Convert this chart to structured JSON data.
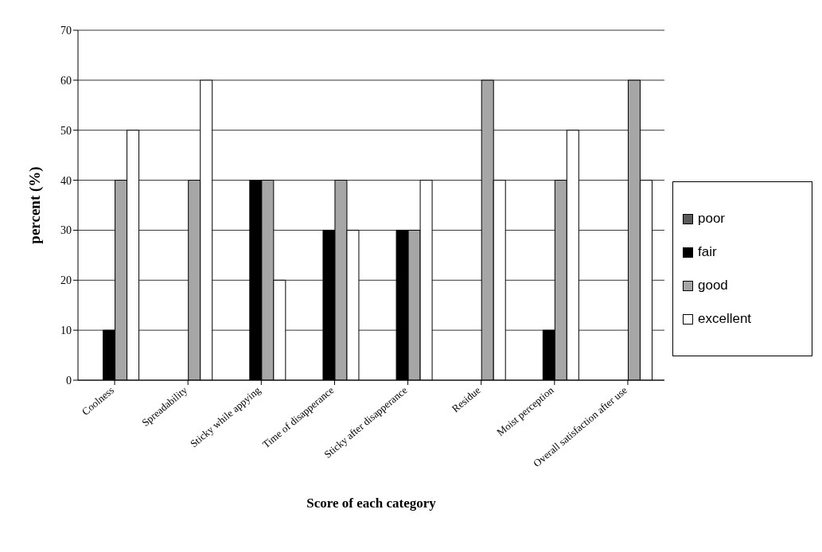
{
  "chart_data": {
    "type": "bar",
    "xlabel": "Score of each category",
    "ylabel": "percent (%)",
    "categories": [
      "Coolness",
      "Spreadability",
      "Sticky while appying",
      "Time of disapperance",
      "Sticky after disapperance",
      "Residue",
      "Moist perception",
      "Overall satisfaction after use"
    ],
    "series": [
      {
        "name": "poor",
        "color": "#5a5a5a",
        "values": [
          0,
          0,
          0,
          0,
          0,
          0,
          0,
          0
        ]
      },
      {
        "name": "fair",
        "color": "#000000",
        "values": [
          10,
          0,
          40,
          30,
          30,
          0,
          10,
          0
        ]
      },
      {
        "name": "good",
        "color": "#a6a6a6",
        "values": [
          40,
          40,
          40,
          40,
          30,
          60,
          40,
          60
        ]
      },
      {
        "name": "excellent",
        "color": "#ffffff",
        "values": [
          50,
          60,
          20,
          30,
          40,
          40,
          50,
          40
        ]
      }
    ],
    "ylim": [
      0,
      70
    ],
    "yticks": [
      0,
      10,
      20,
      30,
      40,
      50,
      60,
      70
    ],
    "grid": "y",
    "legend": "right"
  }
}
